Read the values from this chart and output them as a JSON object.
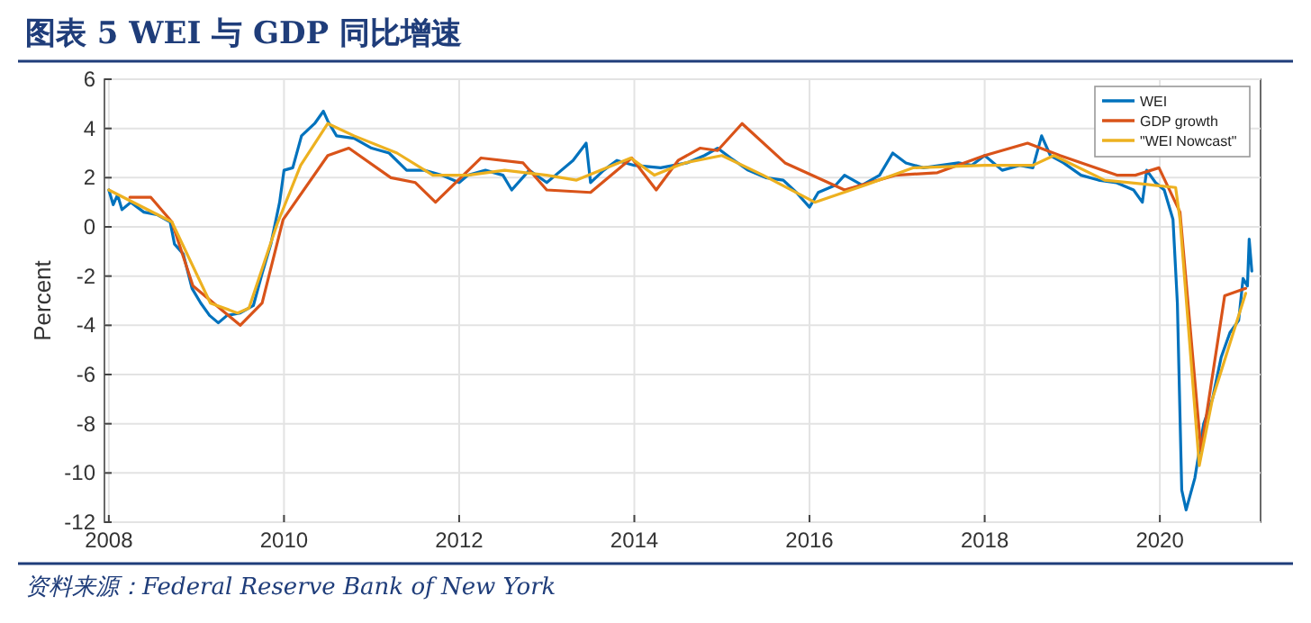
{
  "chart_data": {
    "type": "line",
    "title": "图表 5  WEI 与 GDP 同比增速",
    "ylabel": "Percent",
    "annotations": [
      "资料来源：Federal Reserve Bank of New York"
    ],
    "xlim": [
      2007.95,
      2021.15
    ],
    "xticks": [
      2008,
      2010,
      2012,
      2014,
      2016,
      2018,
      2020
    ],
    "ylim": [
      -12,
      6
    ],
    "yticks": [
      -12,
      -10,
      -8,
      -6,
      -4,
      -2,
      0,
      2,
      4,
      6
    ],
    "grid": true,
    "legend": "top right",
    "line_style": "solid",
    "marker": "none",
    "series": [
      {
        "name": "WEI",
        "color": "#0072bd",
        "x": [
          2008,
          2008.05,
          2008.1,
          2008.15,
          2008.25,
          2008.4,
          2008.55,
          2008.7,
          2008.75,
          2008.85,
          2008.95,
          2009.05,
          2009.15,
          2009.25,
          2009.35,
          2009.5,
          2009.65,
          2009.75,
          2009.85,
          2009.95,
          2010,
          2010.1,
          2010.2,
          2010.35,
          2010.45,
          2010.5,
          2010.6,
          2010.8,
          2011,
          2011.2,
          2011.4,
          2011.6,
          2011.8,
          2012,
          2012.1,
          2012.3,
          2012.5,
          2012.6,
          2012.8,
          2013,
          2013.1,
          2013.3,
          2013.45,
          2013.5,
          2013.65,
          2013.8,
          2014,
          2014.3,
          2014.6,
          2014.8,
          2014.95,
          2015.1,
          2015.3,
          2015.5,
          2015.7,
          2015.85,
          2016,
          2016.1,
          2016.3,
          2016.4,
          2016.6,
          2016.8,
          2016.95,
          2017.1,
          2017.3,
          2017.5,
          2017.7,
          2017.85,
          2018,
          2018.2,
          2018.4,
          2018.55,
          2018.65,
          2018.75,
          2018.9,
          2019.1,
          2019.3,
          2019.5,
          2019.7,
          2019.8,
          2019.85,
          2019.95,
          2020.05,
          2020.15,
          2020.2,
          2020.25,
          2020.3,
          2020.4,
          2020.5,
          2020.6,
          2020.7,
          2020.8,
          2020.9,
          2020.95,
          2021,
          2021.02,
          2021.05
        ],
        "values": [
          1.5,
          0.9,
          1.3,
          0.7,
          1.0,
          0.6,
          0.5,
          0.2,
          -0.7,
          -1.1,
          -2.5,
          -3.1,
          -3.6,
          -3.9,
          -3.6,
          -3.5,
          -3.2,
          -1.9,
          -0.7,
          1.0,
          2.3,
          2.4,
          3.7,
          4.2,
          4.7,
          4.3,
          3.7,
          3.6,
          3.2,
          3.0,
          2.3,
          2.3,
          2.1,
          1.8,
          2.1,
          2.3,
          2.1,
          1.5,
          2.3,
          1.8,
          2.1,
          2.7,
          3.4,
          1.8,
          2.3,
          2.7,
          2.5,
          2.4,
          2.6,
          2.9,
          3.2,
          2.8,
          2.3,
          2.0,
          1.9,
          1.4,
          0.8,
          1.4,
          1.7,
          2.1,
          1.7,
          2.1,
          3.0,
          2.6,
          2.4,
          2.5,
          2.6,
          2.5,
          2.9,
          2.3,
          2.5,
          2.4,
          3.7,
          2.9,
          2.6,
          2.1,
          1.9,
          1.8,
          1.5,
          1.0,
          2.3,
          1.8,
          1.5,
          0.3,
          -3.1,
          -10.7,
          -11.5,
          -10.2,
          -8.0,
          -7.0,
          -5.3,
          -4.3,
          -3.8,
          -2.1,
          -2.4,
          -0.5,
          -1.8
        ]
      },
      {
        "name": "GDP growth",
        "color": "#d95319",
        "x": [
          2008.24,
          2008.48,
          2008.72,
          2008.96,
          2009.5,
          2009.75,
          2009.99,
          2010.5,
          2010.74,
          2011.22,
          2011.5,
          2011.73,
          2012.25,
          2012.73,
          2013,
          2013.5,
          2013.97,
          2014.25,
          2014.5,
          2014.75,
          2014.95,
          2015.23,
          2015.72,
          2016.4,
          2016.98,
          2017.46,
          2018,
          2018.49,
          2018.86,
          2019.51,
          2019.72,
          2019.99,
          2020.23,
          2020.47,
          2020.74,
          2020.98
        ],
        "values": [
          1.2,
          1.2,
          0.2,
          -2.4,
          -4.0,
          -3.1,
          0.3,
          2.9,
          3.2,
          2.0,
          1.8,
          1.0,
          2.8,
          2.6,
          1.5,
          1.4,
          2.8,
          1.5,
          2.7,
          3.2,
          3.1,
          4.2,
          2.6,
          1.5,
          2.1,
          2.2,
          2.9,
          3.4,
          2.9,
          2.1,
          2.1,
          2.4,
          0.6,
          -9.1,
          -2.8,
          -2.5
        ]
      },
      {
        "name": "\"WEI Nowcast\"",
        "color": "#edb120",
        "x": [
          2008,
          2008.72,
          2009.16,
          2009.47,
          2009.6,
          2009.92,
          2010.19,
          2010.5,
          2010.8,
          2011.29,
          2011.7,
          2012.1,
          2012.52,
          2013,
          2013.34,
          2013.75,
          2013.96,
          2014.23,
          2014.5,
          2014.58,
          2015,
          2015.47,
          2016.06,
          2016.64,
          2017.18,
          2018,
          2018.55,
          2018.79,
          2019.37,
          2019.92,
          2020.18,
          2020.23,
          2020.45,
          2020.6,
          2020.98
        ],
        "values": [
          1.5,
          0.2,
          -3.1,
          -3.5,
          -3.3,
          0.1,
          2.5,
          4.2,
          3.7,
          3.0,
          2.1,
          2.1,
          2.3,
          2.1,
          1.9,
          2.5,
          2.8,
          2.1,
          2.5,
          2.6,
          2.9,
          2.1,
          1.0,
          1.7,
          2.4,
          2.5,
          2.5,
          2.9,
          1.9,
          1.7,
          1.6,
          0.3,
          -9.7,
          -7.0,
          -2.7
        ]
      }
    ]
  }
}
